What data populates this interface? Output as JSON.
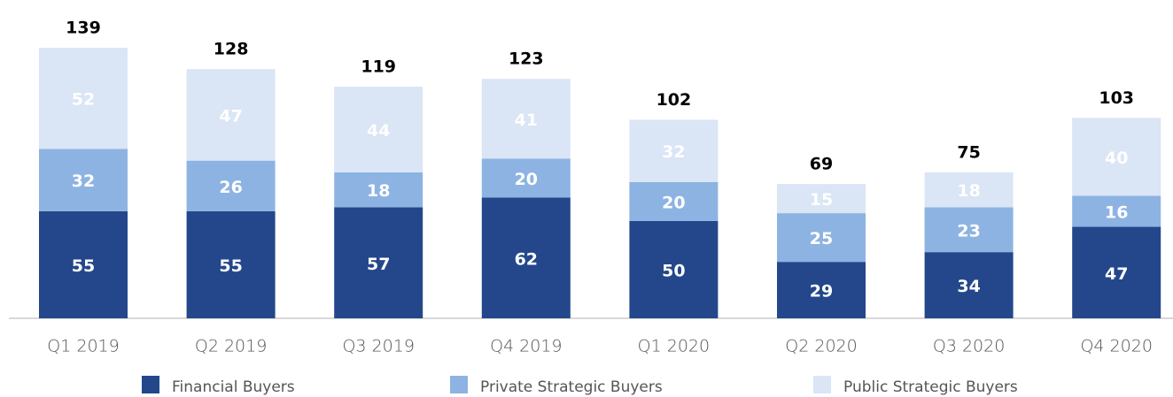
{
  "chart_data": {
    "type": "stacked_bar",
    "categories": [
      "Q1 2019",
      "Q2 2019",
      "Q3 2019",
      "Q4 2019",
      "Q1 2020",
      "Q2 2020",
      "Q3 2020",
      "Q4 2020"
    ],
    "series": [
      {
        "name": "Financial Buyers",
        "color": "#23478a",
        "values": [
          55,
          55,
          57,
          62,
          50,
          29,
          34,
          47
        ]
      },
      {
        "name": "Private Strategic Buyers",
        "color": "#8db3e2",
        "values": [
          32,
          26,
          18,
          20,
          20,
          25,
          23,
          16
        ]
      },
      {
        "name": "Public Strategic Buyers",
        "color": "#dae5f5",
        "values": [
          52,
          47,
          44,
          41,
          32,
          15,
          18,
          40
        ]
      }
    ],
    "totals": [
      139,
      128,
      119,
      123,
      102,
      69,
      75,
      103
    ]
  }
}
